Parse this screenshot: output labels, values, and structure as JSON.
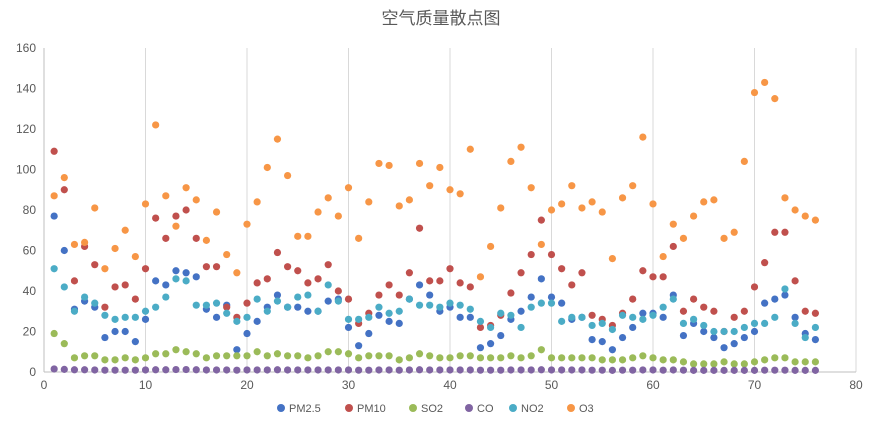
{
  "chart_data": {
    "type": "scatter",
    "title": "空气质量散点图",
    "xlabel": "",
    "ylabel": "",
    "xlim": [
      0,
      80
    ],
    "ylim": [
      0,
      160
    ],
    "x_ticks": [
      "0",
      "10",
      "20",
      "30",
      "40",
      "50",
      "60",
      "70",
      "80"
    ],
    "y_ticks": [
      "0",
      "20",
      "40",
      "60",
      "80",
      "100",
      "120",
      "140",
      "160"
    ],
    "grid": "vertical",
    "legend_position": "bottom",
    "x": [
      1,
      2,
      3,
      4,
      5,
      6,
      7,
      8,
      9,
      10,
      11,
      12,
      13,
      14,
      15,
      16,
      17,
      18,
      19,
      20,
      21,
      22,
      23,
      24,
      25,
      26,
      27,
      28,
      29,
      30,
      31,
      32,
      33,
      34,
      35,
      36,
      37,
      38,
      39,
      40,
      41,
      42,
      43,
      44,
      45,
      46,
      47,
      48,
      49,
      50,
      51,
      52,
      53,
      54,
      55,
      56,
      57,
      58,
      59,
      60,
      61,
      62,
      63,
      64,
      65,
      66,
      67,
      68,
      69,
      70,
      71,
      72,
      73,
      74,
      75,
      76
    ],
    "series": [
      {
        "name": "PM2.5",
        "color": "#4472C4",
        "values": [
          77,
          60,
          31,
          35,
          32,
          17,
          20,
          20,
          15,
          26,
          45,
          43,
          50,
          49,
          47,
          31,
          27,
          33,
          11,
          19,
          25,
          32,
          38,
          32,
          32,
          30,
          30,
          35,
          36,
          22,
          13,
          19,
          28,
          25,
          24,
          36,
          43,
          38,
          30,
          32,
          27,
          27,
          12,
          14,
          18,
          26,
          30,
          37,
          46,
          37,
          34,
          26,
          27,
          16,
          15,
          11,
          17,
          22,
          29,
          29,
          27,
          38,
          18,
          24,
          20,
          17,
          12,
          14,
          17,
          20,
          34,
          36,
          38,
          27,
          19,
          16
        ]
      },
      {
        "name": "PM10",
        "color": "#C0504D",
        "values": [
          109,
          90,
          45,
          62,
          53,
          32,
          42,
          43,
          36,
          51,
          76,
          66,
          77,
          80,
          66,
          52,
          52,
          32,
          27,
          34,
          44,
          46,
          59,
          52,
          50,
          44,
          46,
          53,
          40,
          36,
          24,
          29,
          38,
          43,
          38,
          49,
          71,
          45,
          45,
          51,
          44,
          42,
          22,
          23,
          28,
          39,
          49,
          58,
          75,
          58,
          51,
          43,
          49,
          28,
          26,
          23,
          29,
          36,
          50,
          47,
          47,
          62,
          30,
          36,
          32,
          30,
          20,
          27,
          30,
          42,
          54,
          69,
          69,
          45,
          30,
          29
        ]
      },
      {
        "name": "SO2",
        "color": "#9BBB59",
        "values": [
          19,
          14,
          7,
          8,
          8,
          6,
          6,
          7,
          6,
          7,
          9,
          9,
          11,
          10,
          9,
          7,
          8,
          8,
          8,
          8,
          10,
          8,
          9,
          8,
          8,
          7,
          8,
          10,
          10,
          9,
          7,
          8,
          8,
          8,
          6,
          7,
          9,
          8,
          7,
          7,
          8,
          8,
          7,
          7,
          7,
          8,
          7,
          8,
          11,
          7,
          7,
          7,
          7,
          7,
          6,
          6,
          6,
          7,
          8,
          7,
          6,
          6,
          5,
          4,
          4,
          4,
          5,
          4,
          4,
          5,
          6,
          7,
          7,
          5,
          5,
          5
        ]
      },
      {
        "name": "CO",
        "color": "#8064A2",
        "values": [
          1.5,
          1.3,
          1.1,
          1.1,
          1.0,
          0.9,
          0.9,
          0.9,
          0.9,
          1.0,
          1.1,
          1.1,
          1.2,
          1.2,
          1.1,
          1.0,
          1.0,
          1.0,
          0.9,
          1.0,
          1.0,
          1.0,
          1.1,
          1.0,
          1.0,
          1.0,
          1.0,
          1.0,
          1.0,
          1.0,
          0.9,
          0.9,
          1.0,
          1.0,
          0.9,
          1.0,
          1.1,
          1.0,
          1.0,
          1.0,
          1.0,
          1.0,
          0.9,
          0.9,
          0.9,
          1.0,
          1.0,
          1.0,
          1.1,
          1.0,
          1.0,
          1.0,
          1.0,
          0.9,
          0.9,
          0.8,
          0.9,
          0.9,
          1.0,
          1.0,
          0.9,
          1.0,
          0.9,
          0.8,
          0.8,
          0.8,
          0.8,
          0.8,
          0.8,
          0.8,
          0.9,
          0.9,
          0.9,
          0.8,
          0.8,
          0.8
        ]
      },
      {
        "name": "NO2",
        "color": "#4BACC6",
        "values": [
          51,
          42,
          30,
          37,
          34,
          28,
          26,
          27,
          27,
          30,
          32,
          37,
          46,
          45,
          33,
          33,
          34,
          29,
          25,
          27,
          36,
          30,
          35,
          32,
          37,
          38,
          30,
          43,
          35,
          26,
          26,
          27,
          32,
          29,
          30,
          36,
          33,
          33,
          32,
          34,
          33,
          31,
          25,
          22,
          29,
          28,
          22,
          32,
          34,
          34,
          25,
          27,
          27,
          23,
          24,
          21,
          28,
          27,
          26,
          28,
          32,
          36,
          24,
          26,
          23,
          20,
          20,
          20,
          22,
          24,
          24,
          27,
          41,
          24,
          17,
          22
        ]
      },
      {
        "name": "O3",
        "color": "#F79646",
        "values": [
          87,
          96,
          63,
          64,
          81,
          51,
          61,
          70,
          57,
          83,
          122,
          87,
          72,
          91,
          85,
          65,
          79,
          58,
          49,
          73,
          84,
          101,
          115,
          97,
          67,
          67,
          79,
          86,
          77,
          91,
          66,
          84,
          103,
          102,
          82,
          85,
          103,
          92,
          101,
          90,
          88,
          110,
          47,
          62,
          81,
          104,
          111,
          91,
          63,
          80,
          83,
          92,
          81,
          84,
          79,
          56,
          86,
          92,
          116,
          83,
          57,
          73,
          66,
          77,
          84,
          85,
          66,
          69,
          104,
          138,
          143,
          135,
          86,
          80,
          77,
          75
        ]
      }
    ]
  }
}
